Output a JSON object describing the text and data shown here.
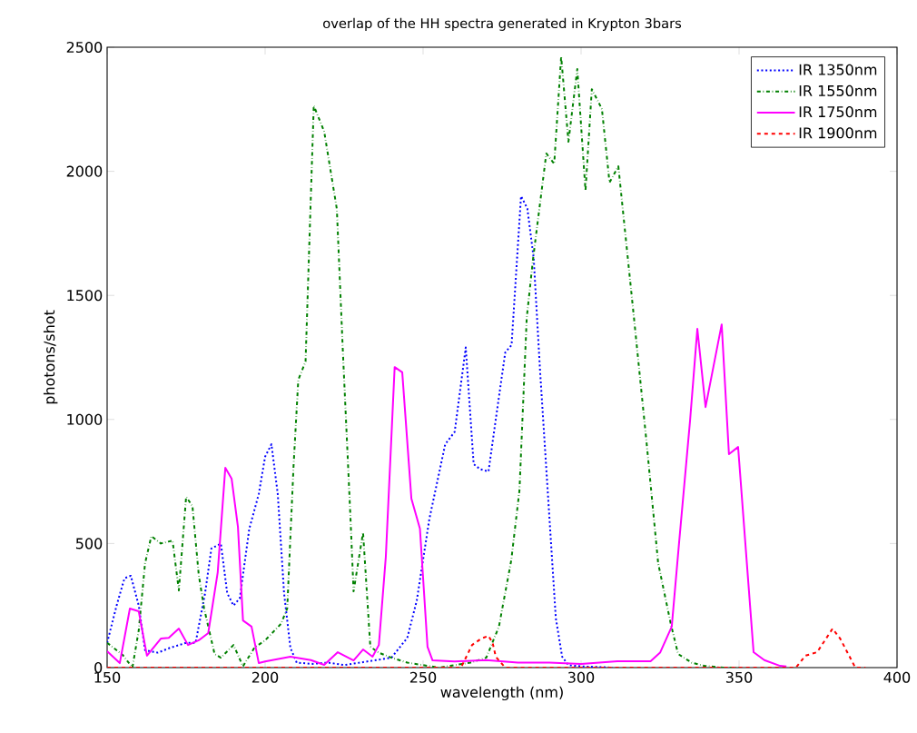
{
  "chart_data": {
    "type": "line",
    "title": "overlap of the HH spectra generated in Krypton 3bars",
    "xlabel": "wavelength (nm)",
    "ylabel": "photons/shot",
    "xlim": [
      150,
      400
    ],
    "ylim": [
      0,
      2500
    ],
    "xticks": [
      150,
      200,
      250,
      300,
      350,
      400
    ],
    "yticks": [
      0,
      500,
      1000,
      1500,
      2000,
      2500
    ],
    "grid": false,
    "legend": "top right",
    "series": [
      {
        "name": "IR 1350nm",
        "color": "#0000ff",
        "line_style": "dotted",
        "x": [
          150,
          153,
          155.5,
          157.5,
          160,
          162,
          166,
          170,
          175,
          178,
          181,
          183,
          186,
          188,
          190,
          192,
          195,
          198,
          200,
          202,
          204,
          206,
          208,
          210,
          215,
          220,
          225,
          230,
          235,
          240,
          245,
          248,
          252,
          257,
          260,
          263.5,
          266,
          268,
          270.7,
          273,
          276,
          278,
          281,
          283,
          285,
          287,
          290,
          292,
          294,
          296,
          300,
          310
        ],
        "values": [
          100,
          250,
          360,
          370,
          250,
          70,
          60,
          80,
          100,
          100,
          300,
          480,
          500,
          300,
          250,
          280,
          560,
          700,
          850,
          900,
          700,
          300,
          80,
          20,
          15,
          20,
          10,
          20,
          30,
          40,
          120,
          270,
          600,
          900,
          950,
          1290,
          820,
          800,
          790,
          1000,
          1270,
          1300,
          1900,
          1850,
          1650,
          1200,
          600,
          200,
          44,
          10,
          5,
          0
        ]
      },
      {
        "name": "IR 1550nm",
        "color": "#008000",
        "line_style": "dashdot",
        "x": [
          150,
          155,
          158,
          160,
          162,
          164,
          167,
          170.7,
          172.7,
          175,
          177,
          179,
          180.7,
          184,
          186,
          190,
          193,
          196.6,
          200,
          205,
          207,
          209,
          210.5,
          212.8,
          215.4,
          218.7,
          222.7,
          224.6,
          227,
          228,
          231,
          233.3,
          236,
          240,
          245,
          250,
          255,
          260,
          265,
          270,
          274,
          277.9,
          280.5,
          282.8,
          284.8,
          289,
          291.5,
          293.7,
          296,
          298.8,
          301.4,
          303.4,
          306.6,
          309,
          311.8,
          316.8,
          320.7,
          324.4,
          328.4,
          330.7,
          335,
          339,
          345,
          350
        ],
        "values": [
          100,
          50,
          0,
          150,
          420,
          530,
          500,
          512,
          311,
          688,
          651,
          373,
          238,
          55,
          40,
          91,
          5,
          80,
          110,
          176,
          238,
          812,
          1160,
          1233,
          2265,
          2160,
          1848,
          1277,
          608,
          307,
          545,
          84,
          60,
          40,
          20,
          10,
          0,
          10,
          20,
          40,
          165,
          432,
          714,
          1409,
          1647,
          2072,
          2030,
          2463,
          2119,
          2412,
          1921,
          2331,
          2251,
          1955,
          2020,
          1402,
          911,
          421,
          176,
          55,
          20,
          7,
          0,
          0
        ]
      },
      {
        "name": "IR 1750nm",
        "color": "#ff00ff",
        "line_style": "solid",
        "x": [
          150,
          154,
          157.2,
          160,
          162.6,
          167,
          169.5,
          172.7,
          175.6,
          179,
          182,
          185,
          187.4,
          189.4,
          191.4,
          193,
          195.7,
          198,
          200,
          208,
          214.5,
          218.7,
          223,
          228,
          231,
          234,
          236,
          238.2,
          241,
          243.4,
          246.3,
          249,
          251.4,
          253,
          260,
          270,
          280,
          290,
          300,
          311.5,
          322,
          325,
          328.7,
          331,
          334.5,
          336.8,
          339.4,
          344.5,
          346.8,
          349.7,
          352,
          354.6,
          358,
          363,
          365
        ],
        "values": [
          66,
          18,
          238,
          227,
          48,
          117,
          120,
          157,
          91,
          110,
          139,
          384,
          805,
          761,
          567,
          190,
          165,
          18,
          25,
          44,
          30,
          11,
          62,
          29,
          73,
          44,
          91,
          446,
          1211,
          1190,
          681,
          560,
          84,
          29,
          25,
          30,
          20,
          20,
          15,
          26,
          26,
          60,
          165,
          500,
          996,
          1365,
          1050,
          1383,
          860,
          889,
          500,
          62,
          30,
          7,
          5
        ]
      },
      {
        "name": "IR 1900nm",
        "color": "#ff0000",
        "line_style": "dashed",
        "x": [
          150,
          200,
          250,
          262,
          265.5,
          268.4,
          270.7,
          272,
          273,
          276,
          300,
          350,
          368,
          371,
          374.7,
          379.6,
          382,
          386.8,
          390
        ],
        "values": [
          0,
          0,
          0,
          0,
          91,
          117,
          128,
          100,
          44,
          0,
          0,
          0,
          0,
          48,
          62,
          157,
          117,
          0,
          0
        ]
      }
    ]
  }
}
